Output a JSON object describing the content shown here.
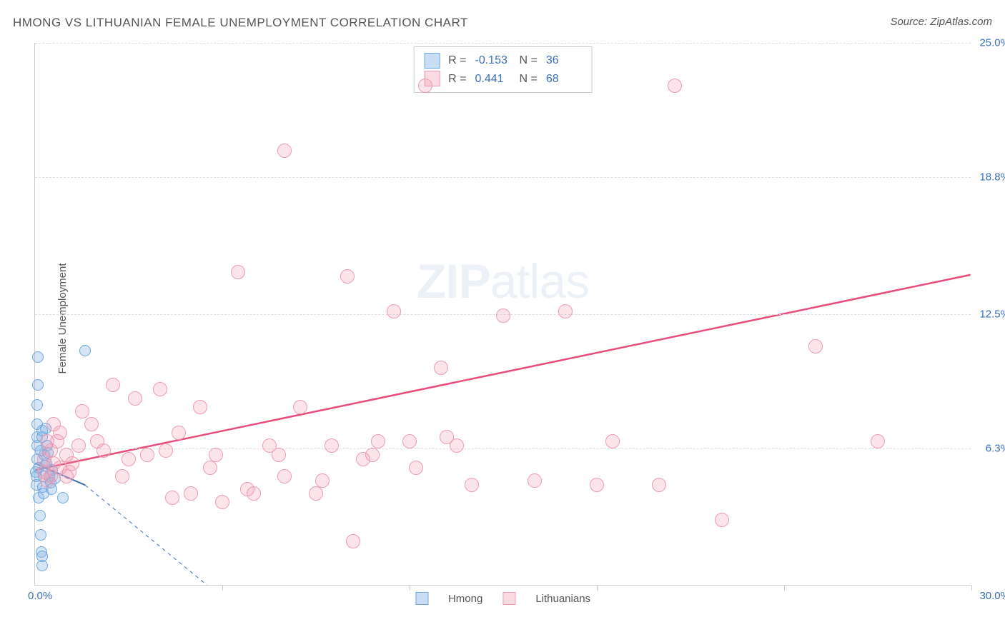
{
  "title": "HMONG VS LITHUANIAN FEMALE UNEMPLOYMENT CORRELATION CHART",
  "source_label": "Source: ZipAtlas.com",
  "y_axis_label": "Female Unemployment",
  "watermark": {
    "bold": "ZIP",
    "rest": "atlas"
  },
  "chart": {
    "type": "scatter",
    "background_color": "#ffffff",
    "grid_color": "#dddddd",
    "axis_color": "#cccccc",
    "tick_label_color": "#3b6fb6",
    "text_color": "#555555",
    "xlim": [
      0,
      30
    ],
    "ylim": [
      0,
      25
    ],
    "x_tick_positions": [
      6,
      12,
      18,
      24,
      30
    ],
    "y_ticks": [
      {
        "value": 6.3,
        "label": "6.3%"
      },
      {
        "value": 12.5,
        "label": "12.5%"
      },
      {
        "value": 18.8,
        "label": "18.8%"
      },
      {
        "value": 25.0,
        "label": "25.0%"
      }
    ],
    "x_origin_label": "0.0%",
    "x_max_label": "30.0%",
    "point_radius_blue": 8,
    "point_radius_pink": 10,
    "series": [
      {
        "name": "Hmong",
        "color_fill": "rgba(135,180,230,0.35)",
        "color_stroke": "#6fa6dc",
        "marker_class": "pt-blue",
        "R": "-0.153",
        "N": "36",
        "trend": {
          "x1": 0.0,
          "y1": 5.6,
          "x2": 1.6,
          "y2": 4.6,
          "dash_ext_x2": 5.5,
          "dash_ext_y2": 0.0,
          "stroke": "#3b6fb6",
          "width": 2
        },
        "points": [
          [
            0.02,
            5.2
          ],
          [
            0.05,
            5.0
          ],
          [
            0.05,
            4.6
          ],
          [
            0.06,
            5.8
          ],
          [
            0.06,
            6.4
          ],
          [
            0.07,
            6.8
          ],
          [
            0.08,
            7.4
          ],
          [
            0.08,
            8.3
          ],
          [
            0.1,
            10.5
          ],
          [
            0.1,
            9.2
          ],
          [
            0.12,
            5.4
          ],
          [
            0.12,
            4.0
          ],
          [
            0.15,
            3.2
          ],
          [
            0.18,
            2.3
          ],
          [
            0.2,
            1.5
          ],
          [
            0.22,
            0.9
          ],
          [
            0.22,
            1.3
          ],
          [
            0.25,
            4.5
          ],
          [
            0.28,
            4.2
          ],
          [
            0.3,
            6.0
          ],
          [
            0.32,
            5.5
          ],
          [
            0.35,
            7.2
          ],
          [
            0.4,
            6.4
          ],
          [
            0.45,
            5.0
          ],
          [
            0.5,
            4.7
          ],
          [
            0.55,
            5.3
          ],
          [
            0.18,
            6.2
          ],
          [
            0.22,
            6.8
          ],
          [
            0.24,
            7.1
          ],
          [
            0.28,
            5.0
          ],
          [
            0.36,
            5.6
          ],
          [
            0.42,
            6.1
          ],
          [
            0.52,
            4.4
          ],
          [
            0.65,
            4.9
          ],
          [
            1.6,
            10.8
          ],
          [
            0.9,
            4.0
          ]
        ]
      },
      {
        "name": "Lithuanians",
        "color_fill": "rgba(240,150,175,0.25)",
        "color_stroke": "#ec9bb4",
        "marker_class": "pt-pink",
        "R": "0.441",
        "N": "68",
        "trend": {
          "x1": 0.0,
          "y1": 5.3,
          "x2": 30.0,
          "y2": 14.3,
          "stroke": "#e84c7a",
          "width": 2.5
        },
        "points": [
          [
            0.3,
            5.2
          ],
          [
            0.3,
            5.8
          ],
          [
            0.5,
            6.2
          ],
          [
            0.5,
            5.0
          ],
          [
            0.6,
            7.4
          ],
          [
            0.7,
            6.6
          ],
          [
            0.8,
            5.4
          ],
          [
            1.0,
            6.0
          ],
          [
            1.2,
            5.6
          ],
          [
            1.5,
            8.0
          ],
          [
            1.8,
            7.4
          ],
          [
            2.2,
            6.2
          ],
          [
            2.5,
            9.2
          ],
          [
            2.8,
            5.0
          ],
          [
            3.2,
            8.6
          ],
          [
            3.6,
            6.0
          ],
          [
            4.0,
            9.0
          ],
          [
            4.4,
            4.0
          ],
          [
            4.6,
            7.0
          ],
          [
            5.0,
            4.2
          ],
          [
            5.3,
            8.2
          ],
          [
            5.6,
            5.4
          ],
          [
            6.0,
            3.8
          ],
          [
            6.5,
            14.4
          ],
          [
            7.0,
            4.2
          ],
          [
            7.5,
            6.4
          ],
          [
            8.0,
            5.0
          ],
          [
            8.0,
            20.0
          ],
          [
            8.5,
            8.2
          ],
          [
            9.0,
            4.2
          ],
          [
            9.5,
            6.4
          ],
          [
            10.0,
            14.2
          ],
          [
            10.2,
            2.0
          ],
          [
            10.5,
            5.8
          ],
          [
            11.0,
            6.6
          ],
          [
            11.5,
            12.6
          ],
          [
            12.0,
            6.6
          ],
          [
            12.5,
            23.0
          ],
          [
            13.0,
            10.0
          ],
          [
            13.5,
            6.4
          ],
          [
            14.0,
            4.6
          ],
          [
            15.0,
            12.4
          ],
          [
            16.0,
            4.8
          ],
          [
            17.0,
            12.6
          ],
          [
            18.0,
            4.6
          ],
          [
            18.5,
            6.6
          ],
          [
            20.0,
            4.6
          ],
          [
            20.5,
            23.0
          ],
          [
            22.0,
            3.0
          ],
          [
            25.0,
            11.0
          ],
          [
            27.0,
            6.6
          ],
          [
            2.0,
            6.6
          ],
          [
            3.0,
            5.8
          ],
          [
            4.2,
            6.2
          ],
          [
            5.8,
            6.0
          ],
          [
            6.8,
            4.4
          ],
          [
            7.8,
            6.0
          ],
          [
            9.2,
            4.8
          ],
          [
            10.8,
            6.0
          ],
          [
            12.2,
            5.4
          ],
          [
            13.2,
            6.8
          ],
          [
            1.0,
            5.0
          ],
          [
            1.4,
            6.4
          ],
          [
            0.4,
            4.8
          ],
          [
            0.4,
            6.6
          ],
          [
            0.6,
            5.6
          ],
          [
            0.8,
            7.0
          ],
          [
            1.1,
            5.2
          ]
        ]
      }
    ]
  },
  "bottom_legend": [
    {
      "swatch": "swatch-blue",
      "label": "Hmong"
    },
    {
      "swatch": "swatch-pink",
      "label": "Lithuanians"
    }
  ]
}
